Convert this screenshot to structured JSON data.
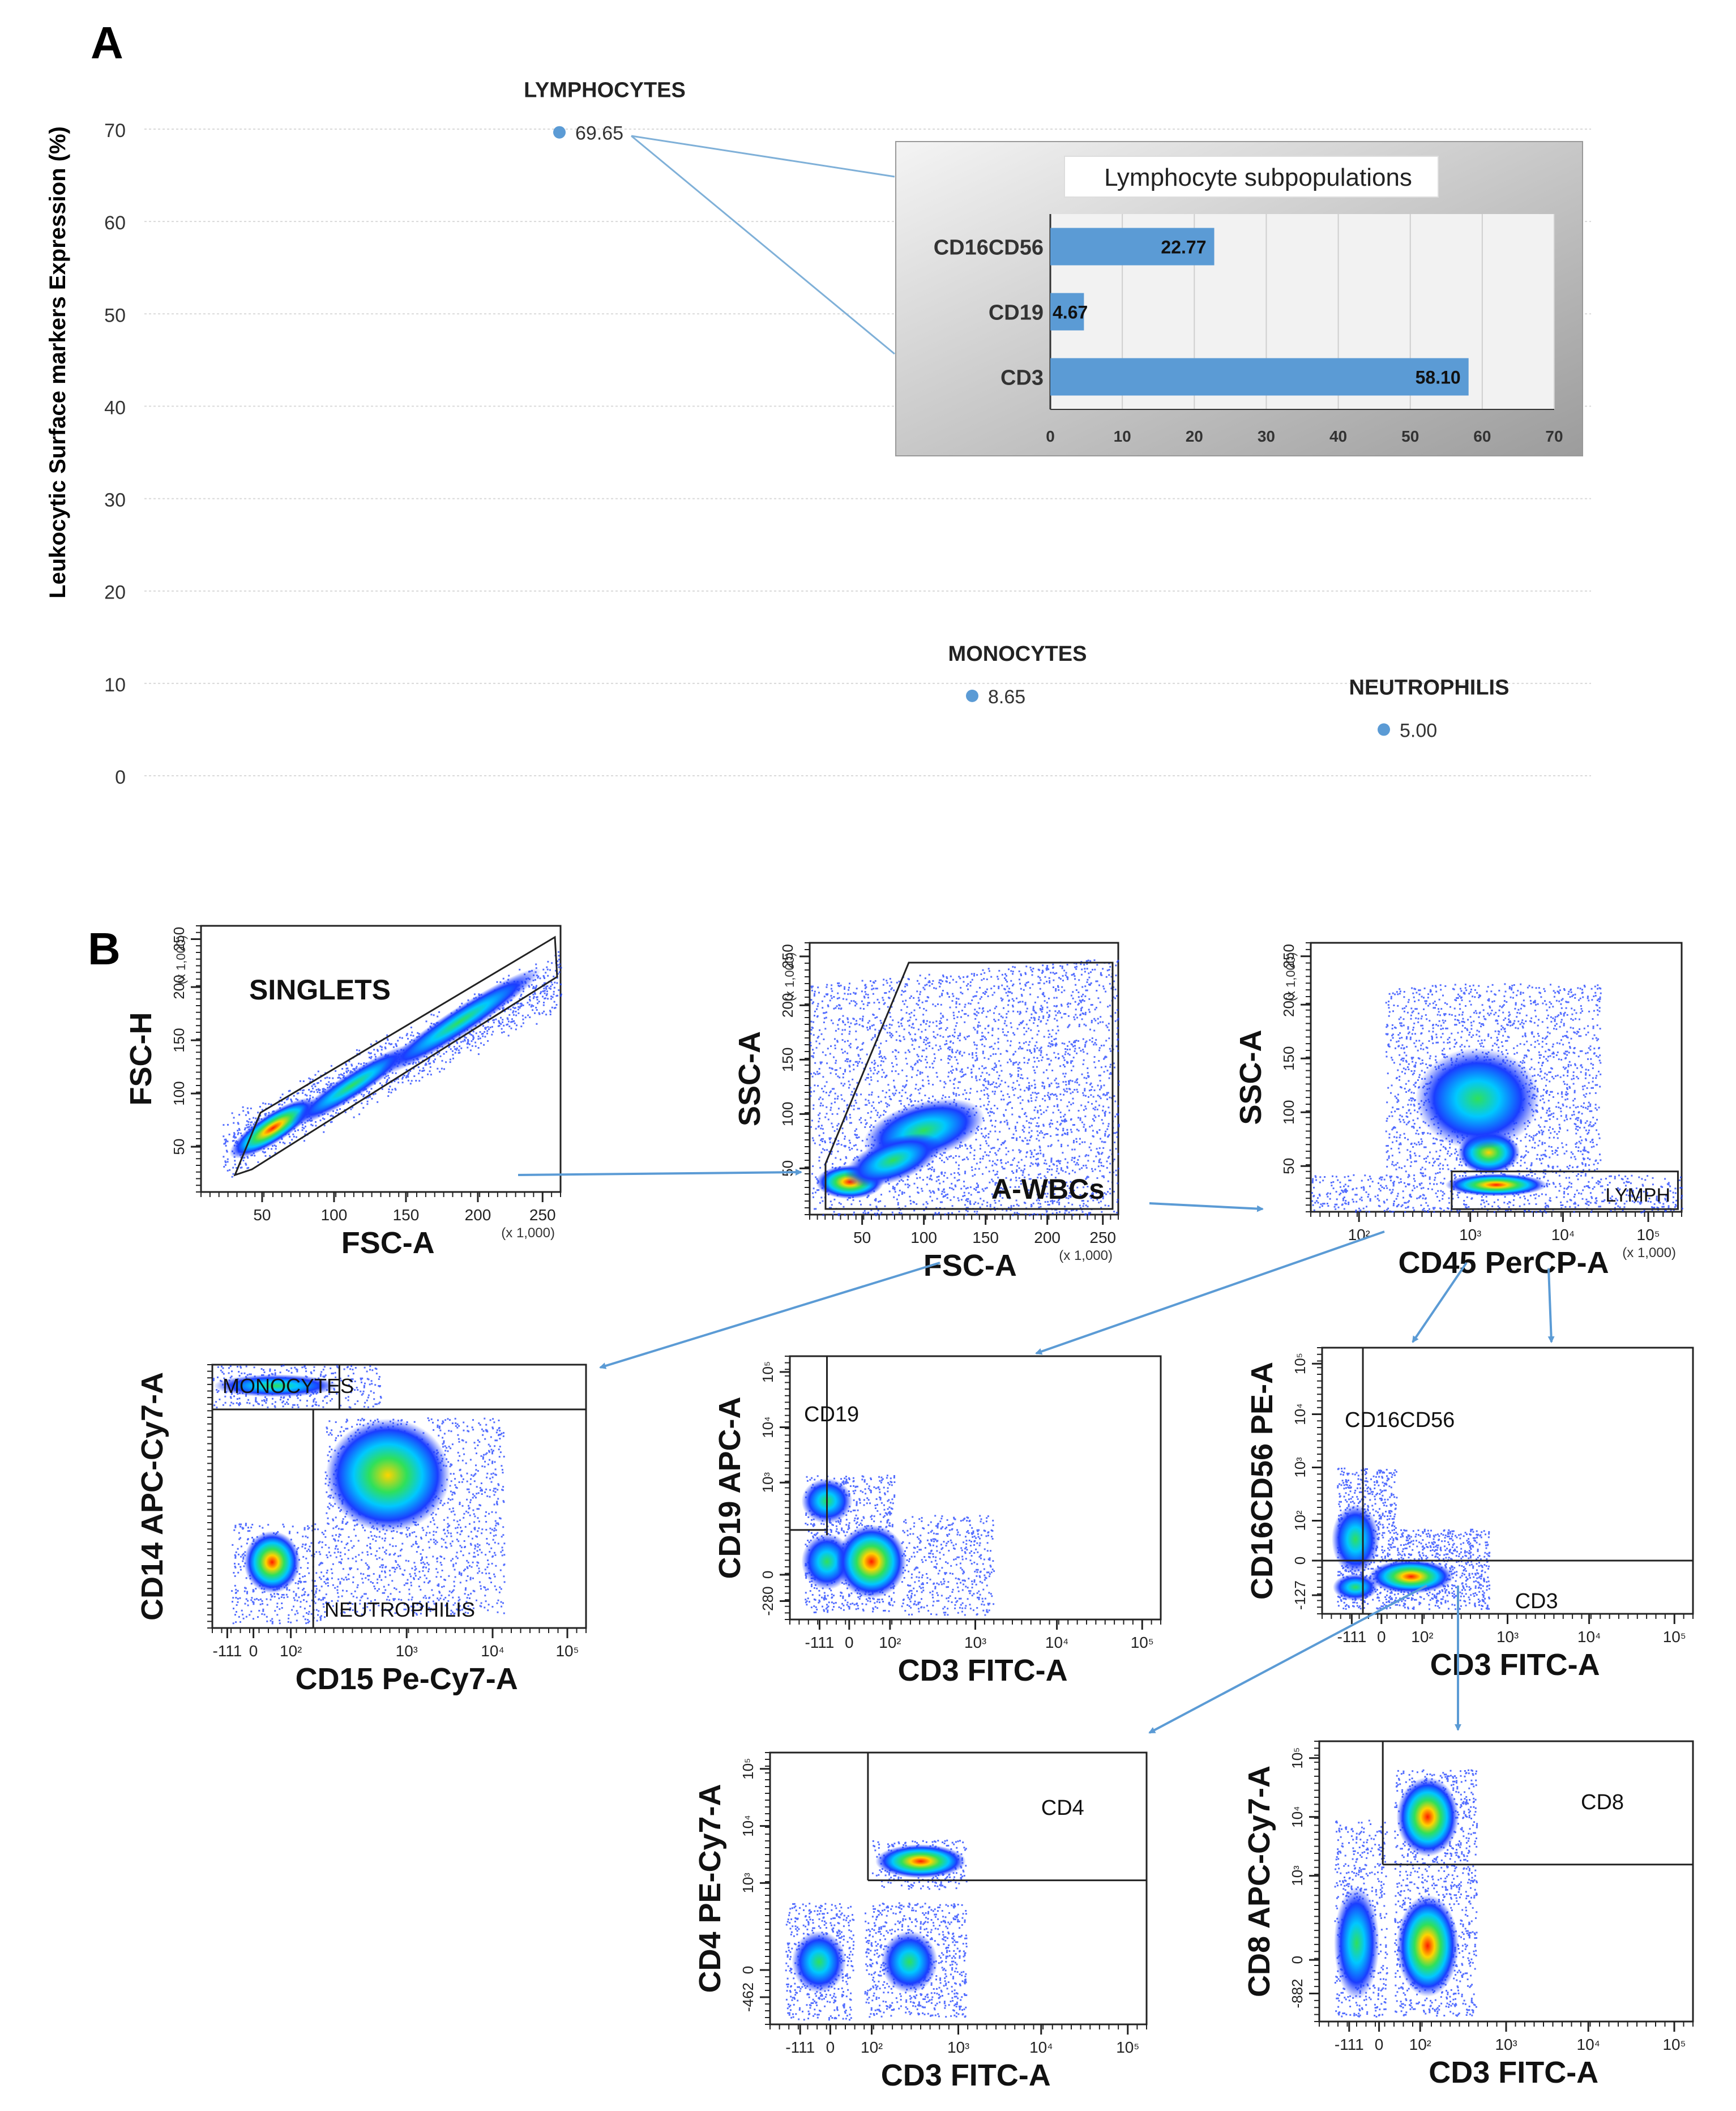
{
  "panel_a_label": "A",
  "panel_b_label": "B",
  "chart_data": [
    {
      "type": "scatter",
      "title": "",
      "xlabel": "",
      "ylabel": "Leukocytic Surface markers Expression (%)",
      "ylim": [
        0,
        70
      ],
      "yticks": [
        0,
        10,
        20,
        30,
        40,
        50,
        60,
        70
      ],
      "grid": true,
      "color": "#5b9bd5",
      "points": [
        {
          "label": "LYMPHOCYTES",
          "value": 69.65,
          "value_label": "69.65"
        },
        {
          "label": "MONOCYTES",
          "value": 8.65,
          "value_label": "8.65"
        },
        {
          "label": "NEUTROPHILIS",
          "value": 5.0,
          "value_label": "5.00"
        }
      ]
    },
    {
      "type": "bar",
      "orientation": "horizontal",
      "title": "Lymphocyte subpopulations",
      "categories": [
        "CD16CD56",
        "CD19",
        "CD3"
      ],
      "values": [
        22.77,
        4.67,
        58.1
      ],
      "value_labels": [
        "22.77",
        "4.67",
        "58.10"
      ],
      "xlim": [
        0,
        70
      ],
      "xticks": [
        0,
        10,
        20,
        30,
        40,
        50,
        60,
        70
      ],
      "grid": true,
      "color": "#5b9bd5"
    }
  ],
  "flow_panels": {
    "singlets": {
      "gate": "SINGLETS",
      "xlabel": "FSC-A",
      "ylabel": "FSC-H",
      "xticks": [
        "50",
        "100",
        "150",
        "200",
        "250"
      ],
      "yticks": [
        "50",
        "100",
        "150",
        "200",
        "250"
      ],
      "scale_note": "(x 1,000)"
    },
    "wbc": {
      "gate": "A-WBCs",
      "xlabel": "FSC-A",
      "ylabel": "SSC-A",
      "xticks": [
        "50",
        "100",
        "150",
        "200",
        "250"
      ],
      "yticks": [
        "50",
        "100",
        "150",
        "200",
        "250"
      ],
      "scale_note": "(x 1,000)"
    },
    "lymph": {
      "gate": "LYMPH",
      "xlabel": "CD45 PerCP-A",
      "ylabel": "SSC-A",
      "xticks": [
        "10²",
        "10³",
        "10⁴",
        "10⁵"
      ],
      "yticks": [
        "50",
        "100",
        "150",
        "200",
        "250"
      ],
      "scale_note": "(x 1,000)"
    },
    "cd14": {
      "gate_top": "MONOCYTES",
      "gate_bottom": "NEUTROPHILIS",
      "xlabel": "CD15 Pe-Cy7-A",
      "ylabel": "CD14 APC-Cy7-A",
      "xticks": [
        "-111",
        "0",
        "10²",
        "10³",
        "10⁴",
        "10⁵"
      ]
    },
    "cd19": {
      "gate": "CD19",
      "xlabel": "CD3 FITC-A",
      "ylabel": "CD19 APC-A",
      "xticks": [
        "-111",
        "0",
        "10²",
        "10³",
        "10⁴",
        "10⁵"
      ],
      "yticks": [
        "-280",
        "0",
        "10³",
        "10⁴",
        "10⁵"
      ]
    },
    "cd16": {
      "gate_top": "CD16CD56",
      "gate_bottom": "CD3",
      "xlabel": "CD3 FITC-A",
      "ylabel": "CD16CD56 PE-A",
      "xticks": [
        "-111",
        "0",
        "10²",
        "10³",
        "10⁴",
        "10⁵"
      ],
      "yticks": [
        "-127",
        "0",
        "10²",
        "10³",
        "10⁴",
        "10⁵"
      ]
    },
    "cd4": {
      "gate": "CD4",
      "xlabel": "CD3 FITC-A",
      "ylabel": "CD4 PE-Cy7-A",
      "xticks": [
        "-111",
        "0",
        "10²",
        "10³",
        "10⁴",
        "10⁵"
      ],
      "yticks": [
        "-462",
        "0",
        "10³",
        "10⁴",
        "10⁵"
      ]
    },
    "cd8": {
      "gate": "CD8",
      "xlabel": "CD3 FITC-A",
      "ylabel": "CD8 APC-Cy7-A",
      "xticks": [
        "-111",
        "0",
        "10²",
        "10³",
        "10⁴",
        "10⁵"
      ],
      "yticks": [
        "-882",
        "0",
        "10³",
        "10⁴",
        "10⁵"
      ]
    }
  }
}
